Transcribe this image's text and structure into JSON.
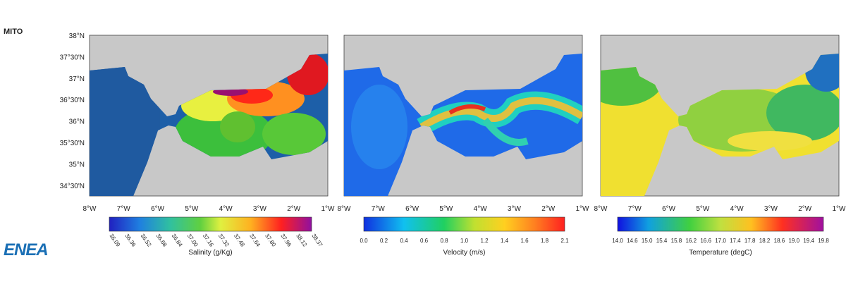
{
  "header": {
    "title": "MITO"
  },
  "logo": {
    "text": "ENEA"
  },
  "lat_labels": [
    "38°N",
    "37°30'N",
    "37°N",
    "36°30'N",
    "36°N",
    "35°30'N",
    "35°N",
    "34°30'N"
  ],
  "lon_labels": [
    "8°W",
    "7°W",
    "6°W",
    "5°W",
    "4°W",
    "3°W",
    "2°W",
    "1°W"
  ],
  "panels": [
    {
      "colorbar": {
        "label": "Salinity (g/Kg)",
        "ticks": [
          "36.09",
          "36.36",
          "36.52",
          "36.68",
          "36.84",
          "37.00",
          "37.16",
          "37.32",
          "37.48",
          "37.64",
          "37.80",
          "37.96",
          "38.12",
          "38.37"
        ]
      }
    },
    {
      "colorbar": {
        "label": "Velocity (m/s)",
        "ticks": [
          "0.0",
          "0.2",
          "0.4",
          "0.6",
          "0.8",
          "1.0",
          "1.2",
          "1.4",
          "1.6",
          "1.8",
          "2.1"
        ]
      }
    },
    {
      "colorbar": {
        "label": "Temperature (degC)",
        "ticks": [
          "14.0",
          "14.6",
          "15.0",
          "15.4",
          "15.8",
          "16.2",
          "16.6",
          "17.0",
          "17.4",
          "17.8",
          "18.2",
          "18.6",
          "19.0",
          "19.4",
          "19.8"
        ]
      }
    }
  ]
}
